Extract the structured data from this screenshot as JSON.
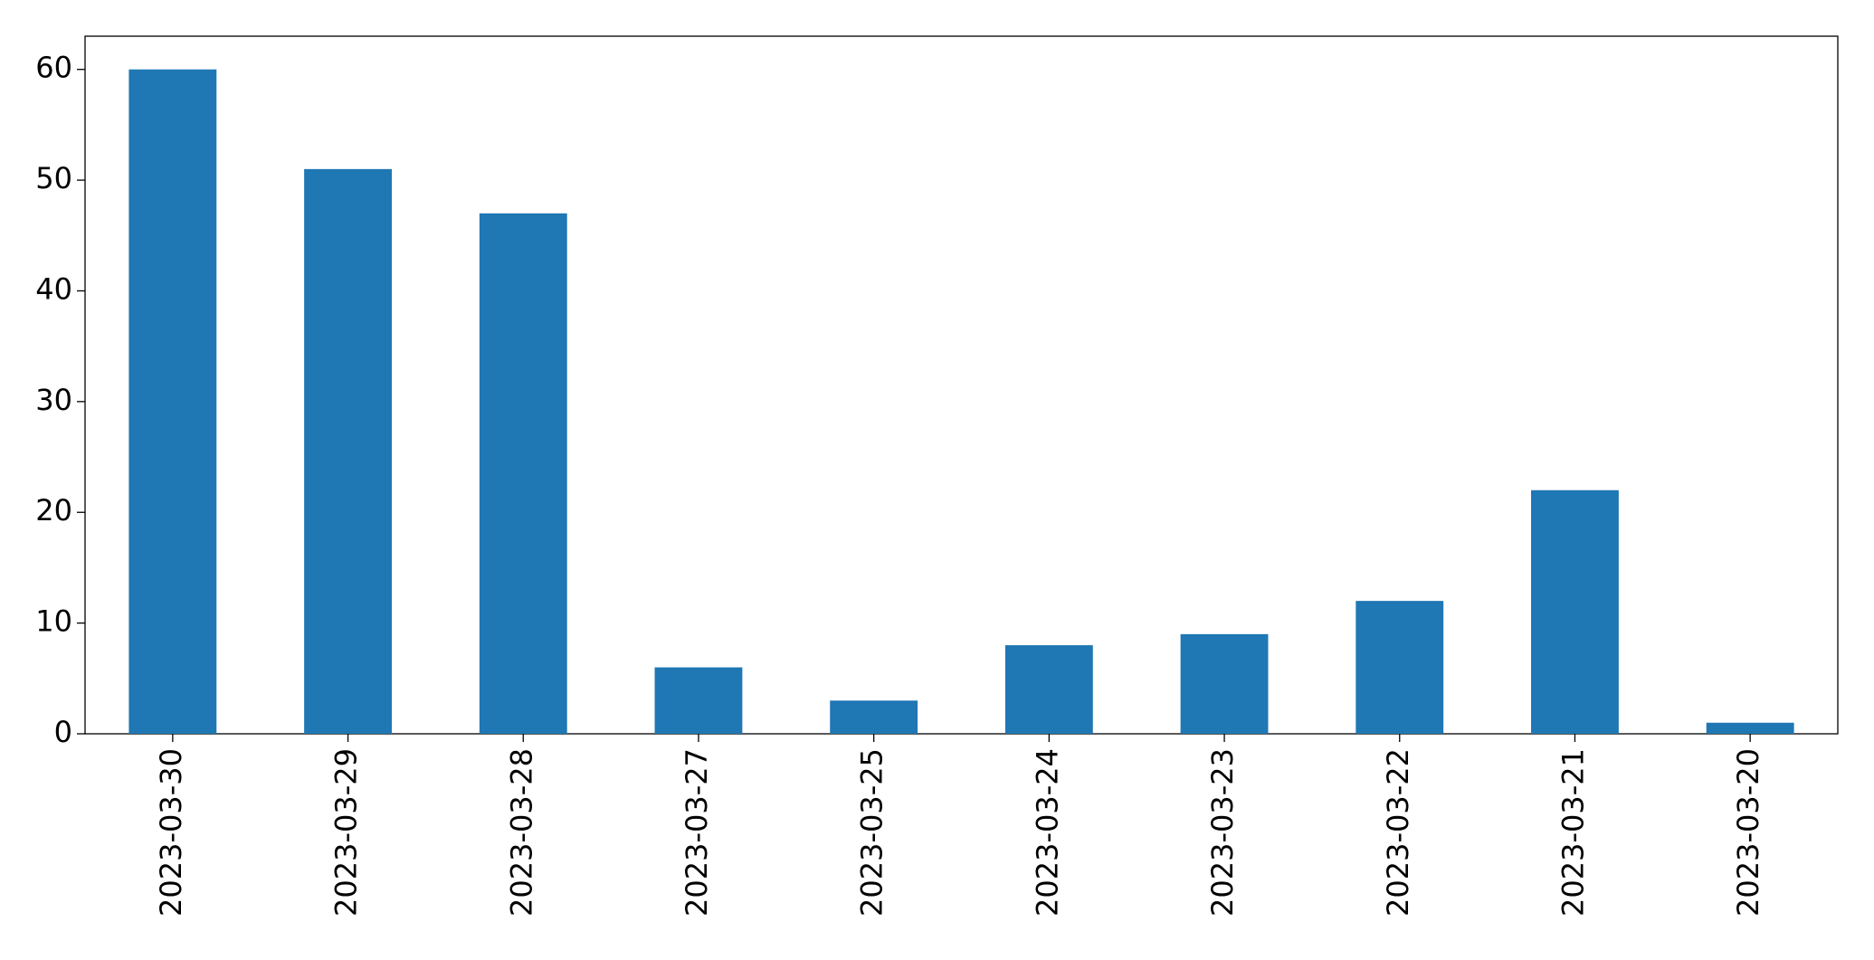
{
  "chart_data": {
    "type": "bar",
    "categories": [
      "2023-03-30",
      "2023-03-29",
      "2023-03-28",
      "2023-03-27",
      "2023-03-25",
      "2023-03-24",
      "2023-03-23",
      "2023-03-22",
      "2023-03-21",
      "2023-03-20"
    ],
    "values": [
      60,
      51,
      47,
      6,
      3,
      8,
      9,
      12,
      22,
      1
    ],
    "color": "#1f77b4",
    "ylim": [
      0,
      63
    ],
    "yticks": [
      0,
      10,
      20,
      30,
      40,
      50,
      60
    ],
    "grid": false
  }
}
